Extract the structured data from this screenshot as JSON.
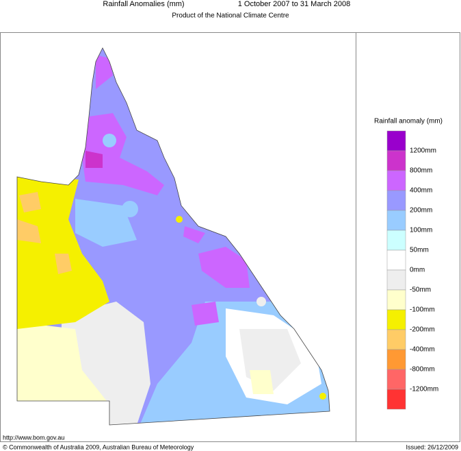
{
  "header": {
    "title": "Rainfall Anomalies (mm)",
    "period": "1 October 2007 to 31 March 2008",
    "subtitle": "Product of the National Climate Centre"
  },
  "legend": {
    "title": "Rainfall anomaly (mm)",
    "colors": [
      "#9900cc",
      "#cc33cc",
      "#cc66ff",
      "#9999ff",
      "#99ccff",
      "#ccffff",
      "#ffffff",
      "#eeeeee",
      "#ffffcc",
      "#f5f000",
      "#ffcc66",
      "#ff9933",
      "#ff6666",
      "#ff3333"
    ],
    "labels": [
      "1200mm",
      "800mm",
      "400mm",
      "200mm",
      "100mm",
      "50mm",
      "0mm",
      "-50mm",
      "-100mm",
      "-200mm",
      "-400mm",
      "-800mm",
      "-1200mm"
    ]
  },
  "footer": {
    "url": "http://www.bom.gov.au",
    "copyright": "© Commonwealth of Australia 2009, Australian Bureau of Meteorology",
    "issued": "Issued: 26/12/2009"
  }
}
